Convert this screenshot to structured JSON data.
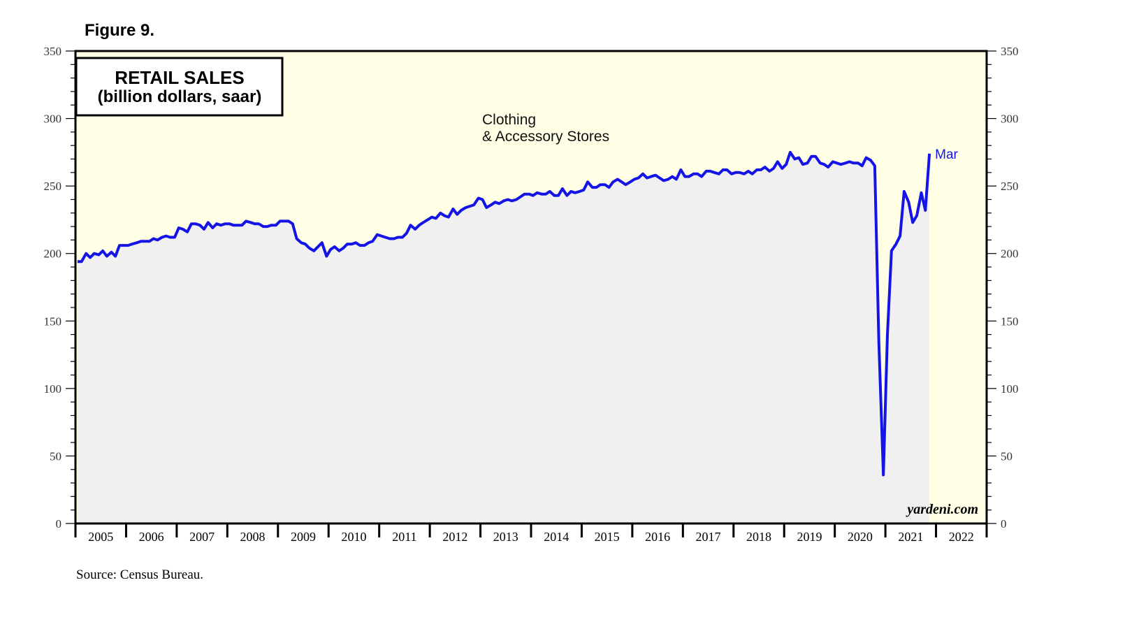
{
  "figure_label": "Figure 9.",
  "source": "Source: Census Bureau.",
  "colors": {
    "plot_background": "#ffffe6",
    "area_fill": "#f0f0f0",
    "line": "#1414e6",
    "frame": "#000000"
  },
  "chart_data": {
    "type": "line",
    "title": "RETAIL SALES",
    "subtitle": "(billion dollars, saar)",
    "series_label_lines": [
      "Clothing",
      "& Accessory Stores"
    ],
    "last_point_label": "Mar",
    "brand": "yardeni.com",
    "x_unit": "decimal year (monthly data)",
    "xlim": [
      2004.5,
      2022.5
    ],
    "ylim": [
      0,
      350
    ],
    "y_ticks": [
      0,
      50,
      100,
      150,
      200,
      250,
      300,
      350
    ],
    "y_tick_labels": [
      "0",
      "50",
      "100",
      "150",
      "200",
      "250",
      "300",
      "350"
    ],
    "x_tick_labels": [
      "2005",
      "2006",
      "2007",
      "2008",
      "2009",
      "2010",
      "2011",
      "2012",
      "2013",
      "2014",
      "2015",
      "2016",
      "2017",
      "2018",
      "2019",
      "2020",
      "2021",
      "2022"
    ],
    "area_under_line": true,
    "grid": false,
    "series": [
      {
        "name": "Clothing & Accessory Stores",
        "points": [
          [
            2004.54,
            194
          ],
          [
            2004.62,
            194
          ],
          [
            2004.71,
            200
          ],
          [
            2004.79,
            197
          ],
          [
            2004.87,
            200
          ],
          [
            2004.96,
            199
          ],
          [
            2005.04,
            202
          ],
          [
            2005.12,
            198
          ],
          [
            2005.21,
            201
          ],
          [
            2005.29,
            198
          ],
          [
            2005.37,
            206
          ],
          [
            2005.46,
            206
          ],
          [
            2005.54,
            206
          ],
          [
            2005.62,
            207
          ],
          [
            2005.71,
            208
          ],
          [
            2005.79,
            209
          ],
          [
            2005.87,
            209
          ],
          [
            2005.96,
            209
          ],
          [
            2006.04,
            211
          ],
          [
            2006.12,
            210
          ],
          [
            2006.21,
            212
          ],
          [
            2006.29,
            213
          ],
          [
            2006.37,
            212
          ],
          [
            2006.46,
            212
          ],
          [
            2006.54,
            219
          ],
          [
            2006.62,
            218
          ],
          [
            2006.71,
            216
          ],
          [
            2006.79,
            222
          ],
          [
            2006.87,
            222
          ],
          [
            2006.96,
            221
          ],
          [
            2007.04,
            218
          ],
          [
            2007.12,
            223
          ],
          [
            2007.21,
            219
          ],
          [
            2007.29,
            222
          ],
          [
            2007.37,
            221
          ],
          [
            2007.46,
            222
          ],
          [
            2007.54,
            222
          ],
          [
            2007.62,
            221
          ],
          [
            2007.71,
            221
          ],
          [
            2007.79,
            221
          ],
          [
            2007.87,
            224
          ],
          [
            2007.96,
            223
          ],
          [
            2008.04,
            222
          ],
          [
            2008.12,
            222
          ],
          [
            2008.21,
            220
          ],
          [
            2008.29,
            220
          ],
          [
            2008.37,
            221
          ],
          [
            2008.46,
            221
          ],
          [
            2008.54,
            224
          ],
          [
            2008.62,
            224
          ],
          [
            2008.71,
            224
          ],
          [
            2008.79,
            222
          ],
          [
            2008.87,
            211
          ],
          [
            2008.96,
            208
          ],
          [
            2009.04,
            207
          ],
          [
            2009.12,
            204
          ],
          [
            2009.21,
            202
          ],
          [
            2009.29,
            205
          ],
          [
            2009.37,
            208
          ],
          [
            2009.46,
            198
          ],
          [
            2009.54,
            203
          ],
          [
            2009.62,
            205
          ],
          [
            2009.71,
            202
          ],
          [
            2009.79,
            204
          ],
          [
            2009.87,
            207
          ],
          [
            2009.96,
            207
          ],
          [
            2010.04,
            208
          ],
          [
            2010.12,
            206
          ],
          [
            2010.21,
            206
          ],
          [
            2010.29,
            208
          ],
          [
            2010.37,
            209
          ],
          [
            2010.46,
            214
          ],
          [
            2010.54,
            213
          ],
          [
            2010.62,
            212
          ],
          [
            2010.71,
            211
          ],
          [
            2010.79,
            211
          ],
          [
            2010.87,
            212
          ],
          [
            2010.96,
            212
          ],
          [
            2011.04,
            215
          ],
          [
            2011.12,
            221
          ],
          [
            2011.21,
            218
          ],
          [
            2011.29,
            221
          ],
          [
            2011.37,
            223
          ],
          [
            2011.46,
            225
          ],
          [
            2011.54,
            227
          ],
          [
            2011.62,
            226
          ],
          [
            2011.71,
            230
          ],
          [
            2011.79,
            228
          ],
          [
            2011.87,
            227
          ],
          [
            2011.96,
            233
          ],
          [
            2012.04,
            229
          ],
          [
            2012.12,
            232
          ],
          [
            2012.21,
            234
          ],
          [
            2012.29,
            235
          ],
          [
            2012.37,
            236
          ],
          [
            2012.46,
            241
          ],
          [
            2012.54,
            240
          ],
          [
            2012.62,
            234
          ],
          [
            2012.71,
            236
          ],
          [
            2012.79,
            238
          ],
          [
            2012.87,
            237
          ],
          [
            2012.96,
            239
          ],
          [
            2013.04,
            240
          ],
          [
            2013.12,
            239
          ],
          [
            2013.21,
            240
          ],
          [
            2013.29,
            242
          ],
          [
            2013.37,
            244
          ],
          [
            2013.46,
            244
          ],
          [
            2013.54,
            243
          ],
          [
            2013.62,
            245
          ],
          [
            2013.71,
            244
          ],
          [
            2013.79,
            244
          ],
          [
            2013.87,
            246
          ],
          [
            2013.96,
            243
          ],
          [
            2014.04,
            243
          ],
          [
            2014.12,
            248
          ],
          [
            2014.21,
            243
          ],
          [
            2014.29,
            246
          ],
          [
            2014.37,
            245
          ],
          [
            2014.46,
            246
          ],
          [
            2014.54,
            247
          ],
          [
            2014.62,
            253
          ],
          [
            2014.71,
            249
          ],
          [
            2014.79,
            249
          ],
          [
            2014.87,
            251
          ],
          [
            2014.96,
            251
          ],
          [
            2015.04,
            249
          ],
          [
            2015.12,
            253
          ],
          [
            2015.21,
            255
          ],
          [
            2015.29,
            253
          ],
          [
            2015.37,
            251
          ],
          [
            2015.46,
            253
          ],
          [
            2015.54,
            255
          ],
          [
            2015.62,
            256
          ],
          [
            2015.71,
            259
          ],
          [
            2015.79,
            256
          ],
          [
            2015.87,
            257
          ],
          [
            2015.96,
            258
          ],
          [
            2016.04,
            256
          ],
          [
            2016.12,
            254
          ],
          [
            2016.21,
            255
          ],
          [
            2016.29,
            257
          ],
          [
            2016.37,
            255
          ],
          [
            2016.46,
            262
          ],
          [
            2016.54,
            257
          ],
          [
            2016.62,
            257
          ],
          [
            2016.71,
            259
          ],
          [
            2016.79,
            259
          ],
          [
            2016.87,
            257
          ],
          [
            2016.96,
            261
          ],
          [
            2017.04,
            261
          ],
          [
            2017.12,
            260
          ],
          [
            2017.21,
            259
          ],
          [
            2017.29,
            262
          ],
          [
            2017.37,
            262
          ],
          [
            2017.46,
            259
          ],
          [
            2017.54,
            260
          ],
          [
            2017.62,
            260
          ],
          [
            2017.71,
            259
          ],
          [
            2017.79,
            261
          ],
          [
            2017.87,
            259
          ],
          [
            2017.96,
            262
          ],
          [
            2018.04,
            262
          ],
          [
            2018.12,
            264
          ],
          [
            2018.21,
            261
          ],
          [
            2018.29,
            263
          ],
          [
            2018.37,
            268
          ],
          [
            2018.46,
            263
          ],
          [
            2018.54,
            266
          ],
          [
            2018.62,
            275
          ],
          [
            2018.71,
            270
          ],
          [
            2018.79,
            271
          ],
          [
            2018.87,
            266
          ],
          [
            2018.96,
            267
          ],
          [
            2019.04,
            272
          ],
          [
            2019.12,
            272
          ],
          [
            2019.21,
            267
          ],
          [
            2019.29,
            266
          ],
          [
            2019.37,
            264
          ],
          [
            2019.46,
            268
          ],
          [
            2019.54,
            267
          ],
          [
            2019.62,
            266
          ],
          [
            2019.71,
            267
          ],
          [
            2019.79,
            268
          ],
          [
            2019.87,
            267
          ],
          [
            2019.96,
            267
          ],
          [
            2020.04,
            265
          ],
          [
            2020.12,
            271
          ],
          [
            2020.21,
            269
          ],
          [
            2020.29,
            265
          ],
          [
            2020.37,
            135
          ],
          [
            2020.46,
            36
          ],
          [
            2020.54,
            140
          ],
          [
            2020.62,
            202
          ],
          [
            2020.71,
            207
          ],
          [
            2020.79,
            213
          ],
          [
            2020.87,
            246
          ],
          [
            2020.96,
            238
          ],
          [
            2021.04,
            223
          ],
          [
            2021.12,
            228
          ],
          [
            2021.21,
            245
          ],
          [
            2021.29,
            232
          ],
          [
            2021.37,
            274
          ]
        ]
      }
    ]
  }
}
